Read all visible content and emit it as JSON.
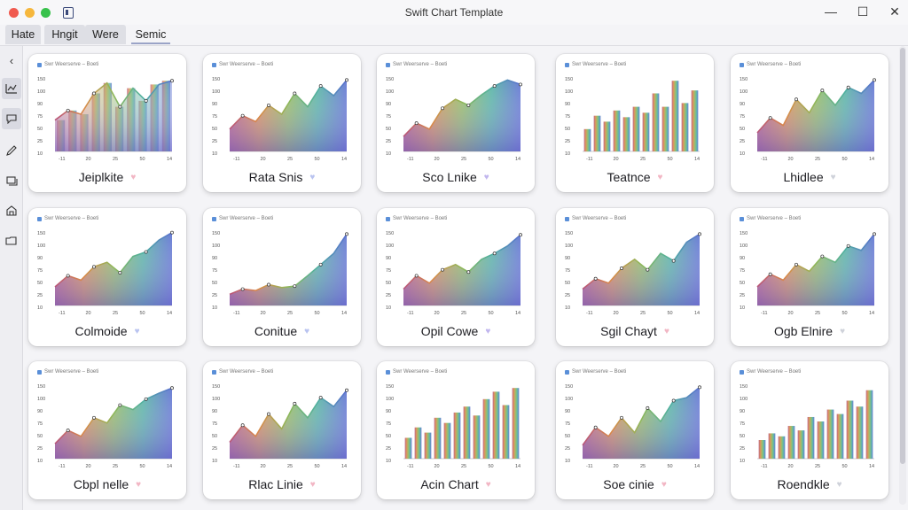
{
  "window": {
    "title": "Swift Chart Template",
    "controls": {
      "minimize": "—",
      "maximize": "☐",
      "close": "✕"
    }
  },
  "tabs": [
    {
      "label": "Hate",
      "active": false
    },
    {
      "label": "Hngit",
      "active": false
    },
    {
      "label": "Were",
      "active": false
    },
    {
      "label": "Semic",
      "active": true
    }
  ],
  "rail": {
    "icons": [
      "chevron-left-icon",
      "chart-icon",
      "chat-icon",
      "pen-icon",
      "layers-icon",
      "home-icon",
      "folder-icon"
    ]
  },
  "card_header": "Swr  Weerserve  –  Boeti",
  "y_ticks": [
    "150",
    "100",
    "90",
    "75",
    "50",
    "25",
    "10"
  ],
  "x_ticks": [
    "-11",
    "20",
    "25",
    "50",
    "14"
  ],
  "cards": [
    {
      "title": "Jeiplkite",
      "heart_color": "#f2b6c4",
      "kind": "mixed",
      "values": [
        42,
        55,
        50,
        78,
        92,
        60,
        85,
        68,
        90,
        95
      ]
    },
    {
      "title": "Rata Snis",
      "heart_color": "#b9c3f0",
      "kind": "area",
      "values": [
        30,
        48,
        40,
        62,
        50,
        78,
        60,
        88,
        75,
        96
      ]
    },
    {
      "title": "Sco Lnike",
      "heart_color": "#c1b6ee",
      "kind": "area",
      "values": [
        20,
        38,
        30,
        58,
        70,
        62,
        76,
        88,
        96,
        90
      ]
    },
    {
      "title": "Teatnce",
      "heart_color": "#f2b6c4",
      "kind": "bars",
      "values": [
        30,
        48,
        40,
        55,
        46,
        60,
        52,
        78,
        60,
        95,
        65,
        82
      ]
    },
    {
      "title": "Lhidlee",
      "heart_color": "#cfd2da",
      "kind": "area",
      "values": [
        25,
        45,
        35,
        70,
        52,
        82,
        62,
        86,
        78,
        96
      ]
    },
    {
      "title": "Colmoide",
      "heart_color": "#b9c3f0",
      "kind": "area",
      "values": [
        25,
        40,
        34,
        52,
        58,
        44,
        66,
        72,
        88,
        98
      ]
    },
    {
      "title": "Conitue",
      "heart_color": "#b9c3f0",
      "kind": "area",
      "values": [
        15,
        22,
        20,
        28,
        24,
        26,
        40,
        55,
        70,
        96
      ]
    },
    {
      "title": "Opil Cowe",
      "heart_color": "#c1b6ee",
      "kind": "area",
      "values": [
        22,
        40,
        30,
        48,
        55,
        45,
        62,
        70,
        80,
        95
      ]
    },
    {
      "title": "Sgil Chayt",
      "heart_color": "#f2b6c4",
      "kind": "area",
      "values": [
        22,
        36,
        30,
        50,
        62,
        48,
        70,
        60,
        85,
        96
      ]
    },
    {
      "title": "Ogb Elnire",
      "heart_color": "#cfd2da",
      "kind": "area",
      "values": [
        25,
        42,
        34,
        55,
        46,
        66,
        58,
        80,
        74,
        96
      ]
    },
    {
      "title": "Cbpl nelle",
      "heart_color": "#f2b6c4",
      "kind": "area",
      "values": [
        20,
        38,
        30,
        55,
        48,
        72,
        66,
        80,
        88,
        95
      ]
    },
    {
      "title": "Rlac Linie",
      "heart_color": "#f2b6c4",
      "kind": "area",
      "values": [
        22,
        45,
        30,
        60,
        40,
        74,
        55,
        82,
        70,
        92
      ]
    },
    {
      "title": "Acin Chart",
      "heart_color": "#f2b6c4",
      "kind": "bars",
      "values": [
        28,
        42,
        35,
        55,
        48,
        62,
        70,
        58,
        80,
        90,
        72,
        95
      ]
    },
    {
      "title": "Soe cinie",
      "heart_color": "#f2b6c4",
      "kind": "area",
      "values": [
        18,
        42,
        30,
        55,
        35,
        68,
        50,
        78,
        82,
        96
      ]
    },
    {
      "title": "Roendkle",
      "heart_color": "#cfd2da",
      "kind": "bars",
      "values": [
        25,
        34,
        30,
        44,
        38,
        56,
        50,
        66,
        60,
        78,
        70,
        92
      ]
    }
  ]
}
